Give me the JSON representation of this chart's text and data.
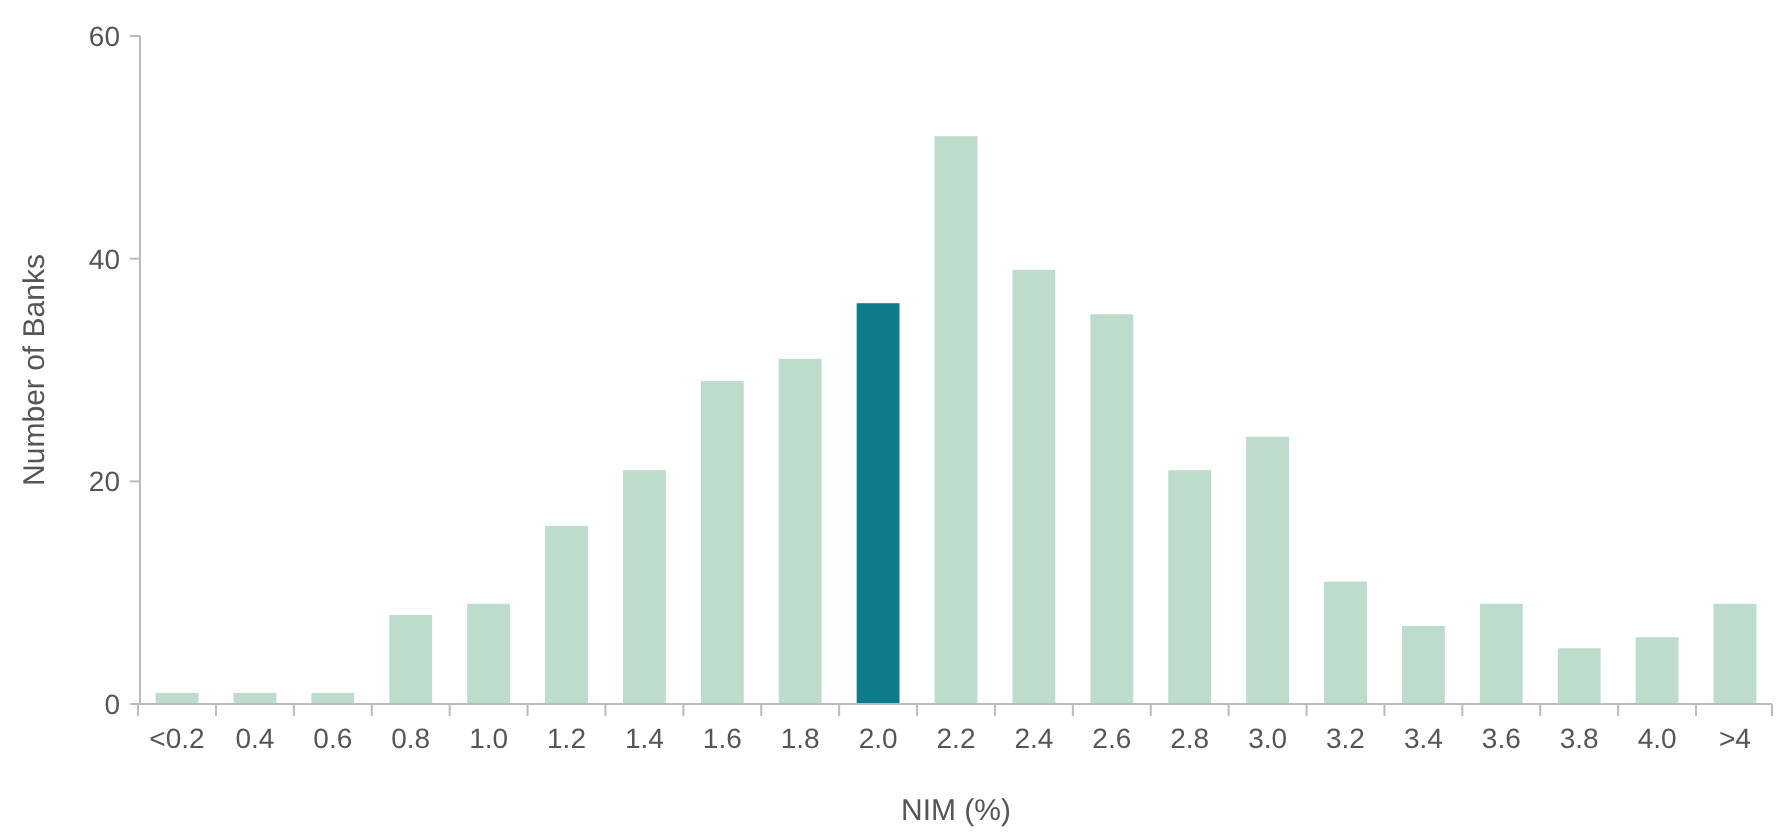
{
  "chart_data": {
    "type": "bar",
    "xlabel": "NIM (%)",
    "ylabel": "Number of Banks",
    "categories": [
      "<0.2",
      "0.4",
      "0.6",
      "0.8",
      "1.0",
      "1.2",
      "1.4",
      "1.6",
      "1.8",
      "2.0",
      "2.2",
      "2.4",
      "2.6",
      "2.8",
      "3.0",
      "3.2",
      "3.4",
      "3.6",
      "3.8",
      "4.0",
      ">4"
    ],
    "values": [
      1,
      1,
      1,
      8,
      9,
      16,
      21,
      29,
      31,
      36,
      51,
      39,
      35,
      21,
      24,
      11,
      7,
      9,
      5,
      6,
      9
    ],
    "colors": [
      "#bddccb",
      "#bddccb",
      "#bddccb",
      "#bddccb",
      "#bddccb",
      "#bddccb",
      "#bddccb",
      "#bddccb",
      "#bddccb",
      "#0f7a8a",
      "#bddccb",
      "#bddccb",
      "#bddccb",
      "#bddccb",
      "#bddccb",
      "#bddccb",
      "#bddccb",
      "#bddccb",
      "#bddccb",
      "#bddccb",
      "#bddccb"
    ],
    "ylim": [
      0,
      60
    ],
    "yticks": [
      0,
      20,
      40,
      60
    ],
    "grid": false
  }
}
